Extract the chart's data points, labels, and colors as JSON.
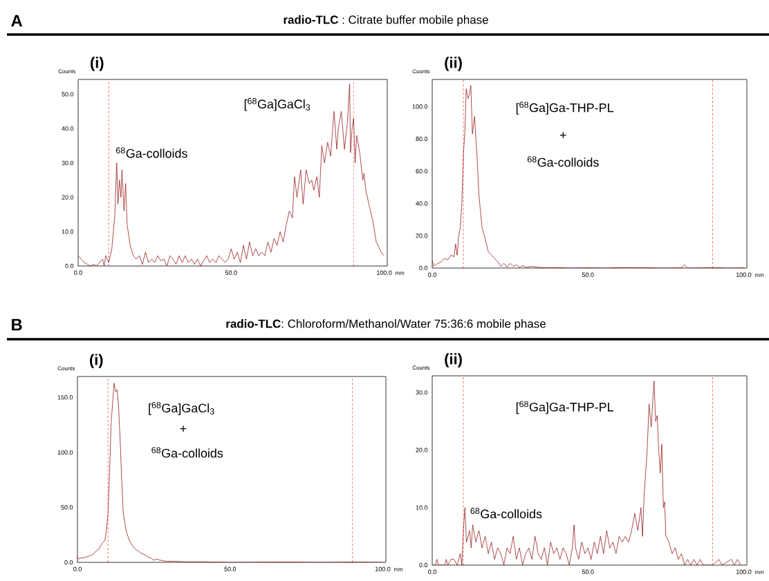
{
  "chart_data": [
    {
      "type": "line",
      "title": "(i)",
      "ylabel": "Counts",
      "xlabel": "mm",
      "marker": "none",
      "line_style": "solid",
      "annotations": [
        "A",
        "**radio-TLC** : Citrate buffer mobile phase",
        "$^{68}$Ga-colloids",
        "[$^{68}$Ga]GaCl$_{3}$"
      ],
      "xlim": [
        0,
        101
      ],
      "ylim": [
        0,
        54.3
      ],
      "xticks": [
        {
          "value": 0,
          "label": "0.0"
        },
        {
          "value": 10,
          "label": null
        },
        {
          "value": 20,
          "label": null
        },
        {
          "value": 30,
          "label": null
        },
        {
          "value": 40,
          "label": null
        },
        {
          "value": 50,
          "label": "50.0"
        },
        {
          "value": 60,
          "label": null
        },
        {
          "value": 70,
          "label": null
        },
        {
          "value": 80,
          "label": null
        },
        {
          "value": 90,
          "label": null
        },
        {
          "value": 100,
          "label": "100.0"
        }
      ],
      "yticks": [
        {
          "value": 0,
          "label": "0.0"
        },
        {
          "value": 10,
          "label": "10.0"
        },
        {
          "value": 20,
          "label": "20.0"
        },
        {
          "value": 30,
          "label": "30.0"
        },
        {
          "value": 40,
          "label": "40.0"
        },
        {
          "value": 50,
          "label": "50.0"
        }
      ],
      "ref_lines": [
        {
          "axis": "x",
          "value": 10,
          "color": "#ff0000",
          "line_style": "dashed"
        },
        {
          "axis": "x",
          "value": 90,
          "color": "#ff0000",
          "line_style": "dashed"
        }
      ],
      "series": [
        {
          "color": "#8b0000",
          "x": [
            0,
            1,
            2,
            3,
            4,
            5,
            6,
            7,
            8,
            8.5,
            9,
            10,
            11,
            12,
            12.6,
            13,
            13.5,
            14,
            14.3,
            15,
            15.5,
            16,
            17,
            18,
            19,
            20,
            21,
            22,
            23,
            24,
            25,
            26,
            27,
            28,
            29,
            30,
            31,
            32,
            33,
            34,
            35,
            36,
            37,
            38,
            39,
            40,
            41,
            42,
            43,
            44,
            45,
            46,
            47,
            48,
            49,
            50,
            51,
            52,
            53,
            54,
            55,
            56,
            57,
            58,
            59,
            60,
            61,
            62,
            63,
            64,
            65,
            66,
            67,
            68,
            69,
            70,
            70.7,
            71.5,
            72.7,
            73.5,
            74.5,
            75.5,
            76.3,
            77,
            78,
            78.8,
            79.6,
            80.5,
            81.5,
            82.5,
            83.6,
            84.5,
            85,
            86,
            87,
            88,
            88.7,
            89,
            89.5,
            90,
            90.5,
            91,
            92,
            93,
            93.4,
            94,
            95,
            95.8,
            96.5,
            97.4,
            98,
            99,
            100
          ],
          "values": [
            3,
            2,
            1,
            0.5,
            0,
            0.5,
            0,
            1,
            2,
            0,
            3,
            1,
            5,
            15,
            30,
            18,
            25,
            20,
            28,
            16,
            24,
            12,
            6,
            3,
            2,
            3,
            0.5,
            4,
            1,
            2,
            1,
            3,
            1.5,
            2,
            0,
            3,
            2,
            0.5,
            3,
            1,
            3,
            1,
            2,
            0.5,
            2,
            0,
            1.5,
            3,
            1,
            2,
            1,
            3,
            2,
            1,
            2,
            5,
            2,
            4,
            1,
            6,
            2,
            7,
            3,
            5,
            3,
            4,
            3,
            7,
            4,
            8,
            6,
            10,
            7,
            12,
            16,
            14,
            26,
            20,
            28,
            18,
            28,
            24,
            25,
            22,
            26,
            20,
            35,
            30,
            36,
            32,
            45,
            34,
            40,
            45,
            34,
            42,
            53,
            33,
            40,
            43,
            30,
            38,
            33,
            25,
            27,
            22,
            18,
            15,
            12,
            7,
            6,
            4,
            3
          ]
        }
      ]
    },
    {
      "type": "line",
      "title": "(ii)",
      "ylabel": "Counts",
      "xlabel": "mm",
      "marker": "none",
      "line_style": "solid",
      "annotations": [
        "[$^{68}$Ga]Ga-THP-PL",
        "+",
        "$^{68}$Ga-colloids"
      ],
      "xlim": [
        0,
        101
      ],
      "ylim": [
        0,
        116.8
      ],
      "xticks": [
        {
          "value": 0,
          "label": "0.0"
        },
        {
          "value": 10,
          "label": null
        },
        {
          "value": 20,
          "label": null
        },
        {
          "value": 30,
          "label": null
        },
        {
          "value": 40,
          "label": null
        },
        {
          "value": 50,
          "label": "50.0"
        },
        {
          "value": 60,
          "label": null
        },
        {
          "value": 70,
          "label": null
        },
        {
          "value": 80,
          "label": null
        },
        {
          "value": 90,
          "label": null
        },
        {
          "value": 100,
          "label": "100.0"
        }
      ],
      "yticks": [
        {
          "value": 0,
          "label": "0.0"
        },
        {
          "value": 20,
          "label": "20.0"
        },
        {
          "value": 40,
          "label": "40.0"
        },
        {
          "value": 60,
          "label": "60.0"
        },
        {
          "value": 80,
          "label": "80.0"
        },
        {
          "value": 100,
          "label": "100.0"
        }
      ],
      "ref_lines": [
        {
          "axis": "x",
          "value": 10,
          "color": "#ff0000",
          "line_style": "dashed"
        },
        {
          "axis": "x",
          "value": 90,
          "color": "#ff0000",
          "line_style": "dashed"
        }
      ],
      "series": [
        {
          "color": "#8b0000",
          "x": [
            0,
            0.5,
            1,
            2,
            3,
            4,
            5,
            6,
            7,
            7.5,
            8,
            8.5,
            9,
            9.5,
            10,
            10.5,
            10.9,
            11.5,
            12,
            12.4,
            12.9,
            13.6,
            14.1,
            14.5,
            15,
            16,
            17,
            18,
            19,
            20,
            21,
            22,
            23,
            24,
            25,
            26,
            27,
            28,
            29,
            30,
            32,
            34,
            36,
            40,
            45,
            50,
            55,
            60,
            70,
            75,
            80,
            81,
            82,
            90,
            95,
            100
          ],
          "values": [
            5,
            1,
            2,
            3,
            4,
            6,
            5,
            8,
            7,
            15,
            8,
            20,
            25,
            40,
            70,
            85,
            111,
            105,
            108,
            113,
            83,
            94,
            78,
            65,
            45,
            25,
            18,
            10,
            8,
            6,
            4,
            1,
            3,
            0.5,
            3,
            1,
            2,
            0.5,
            1.5,
            0.5,
            1,
            0.5,
            0.2,
            0.3,
            0,
            0.2,
            0,
            0.3,
            0.2,
            0,
            0.2,
            2,
            0,
            0.3,
            0,
            0.2
          ]
        }
      ]
    },
    {
      "type": "line",
      "title": "(i)",
      "ylabel": "Counts",
      "xlabel": "mm",
      "marker": "none",
      "line_style": "solid",
      "annotations": [
        "B",
        "**radio-TLC**: Chloroform/Methanol/Water 75:36:6 mobile phase",
        "[$^{68}$Ga]GaCl$_{3}$",
        "+",
        "$^{68}$Ga-colloids"
      ],
      "xlim": [
        0,
        101
      ],
      "ylim": [
        0,
        169
      ],
      "xticks": [
        {
          "value": 0,
          "label": "0.0"
        },
        {
          "value": 10,
          "label": null
        },
        {
          "value": 20,
          "label": null
        },
        {
          "value": 30,
          "label": null
        },
        {
          "value": 40,
          "label": null
        },
        {
          "value": 50,
          "label": "50.0"
        },
        {
          "value": 60,
          "label": null
        },
        {
          "value": 70,
          "label": null
        },
        {
          "value": 80,
          "label": null
        },
        {
          "value": 90,
          "label": null
        },
        {
          "value": 100,
          "label": "100.0"
        }
      ],
      "yticks": [
        {
          "value": 0,
          "label": "0.0"
        },
        {
          "value": 50,
          "label": "50.0"
        },
        {
          "value": 100,
          "label": "100.0"
        },
        {
          "value": 150,
          "label": "150.0"
        }
      ],
      "ref_lines": [
        {
          "axis": "x",
          "value": 10,
          "color": "#ff0000",
          "line_style": "dashed"
        },
        {
          "axis": "x",
          "value": 90,
          "color": "#ff0000",
          "line_style": "dashed"
        }
      ],
      "series": [
        {
          "color": "#8b0000",
          "x": [
            0,
            0.5,
            1,
            2,
            3,
            4,
            5,
            6,
            7,
            8,
            9,
            9.5,
            10,
            10.5,
            11,
            11.5,
            12,
            12.5,
            13,
            13.5,
            14,
            14.5,
            15,
            16,
            17,
            18,
            19,
            20,
            21,
            22,
            23,
            24,
            25,
            26,
            27,
            28,
            29,
            30,
            32,
            35,
            40,
            45,
            50,
            60,
            70,
            80,
            90,
            100
          ],
          "values": [
            5,
            3,
            4,
            4,
            5,
            6,
            7,
            10,
            12,
            17,
            20,
            30,
            45,
            80,
            125,
            145,
            163,
            155,
            157,
            140,
            110,
            75,
            45,
            28,
            20,
            15,
            12,
            10,
            8,
            7,
            5,
            4,
            2,
            3,
            2,
            1.5,
            1,
            1,
            1,
            0.5,
            0.5,
            0.3,
            0,
            0.2,
            0.3,
            0,
            0.3,
            0
          ]
        }
      ]
    },
    {
      "type": "line",
      "title": "(ii)",
      "ylabel": "Counts",
      "xlabel": "mm",
      "marker": "none",
      "line_style": "solid",
      "annotations": [
        "[$^{68}$Ga]Ga-THP-PL",
        "$^{68}$Ga-colloids"
      ],
      "xlim": [
        0,
        101
      ],
      "ylim": [
        0,
        32.9
      ],
      "xticks": [
        {
          "value": 0,
          "label": "0.0"
        },
        {
          "value": 10,
          "label": null
        },
        {
          "value": 20,
          "label": null
        },
        {
          "value": 30,
          "label": null
        },
        {
          "value": 40,
          "label": null
        },
        {
          "value": 50,
          "label": "50.0"
        },
        {
          "value": 60,
          "label": null
        },
        {
          "value": 70,
          "label": null
        },
        {
          "value": 80,
          "label": null
        },
        {
          "value": 90,
          "label": null
        },
        {
          "value": 100,
          "label": "100.0"
        }
      ],
      "yticks": [
        {
          "value": 0,
          "label": "0.0"
        },
        {
          "value": 10,
          "label": "10.0"
        },
        {
          "value": 20,
          "label": "20.0"
        },
        {
          "value": 30,
          "label": "30.0"
        }
      ],
      "ref_lines": [
        {
          "axis": "x",
          "value": 10,
          "color": "#ff0000",
          "line_style": "dashed"
        },
        {
          "axis": "x",
          "value": 90,
          "color": "#ff0000",
          "line_style": "dashed"
        }
      ],
      "series": [
        {
          "color": "#8b0000",
          "x": [
            0,
            1,
            1.5,
            2,
            4,
            4.5,
            5,
            6,
            7,
            8,
            9,
            9.5,
            10,
            10.5,
            11,
            12,
            12.5,
            13,
            14,
            15,
            16,
            17,
            18,
            19,
            20,
            21,
            22,
            23,
            24,
            25,
            26,
            27,
            28,
            29,
            30,
            31,
            32,
            33,
            34,
            35,
            36,
            37,
            38,
            39,
            40,
            41,
            42,
            43,
            44,
            45,
            45.5,
            46,
            47,
            48,
            49,
            50,
            51,
            52,
            53,
            54,
            55,
            56,
            57,
            58,
            59,
            60,
            61,
            62,
            63,
            64,
            65,
            66,
            67,
            67.5,
            68,
            69,
            69.6,
            70.3,
            71.2,
            71.7,
            72.2,
            72.7,
            73.2,
            73.7,
            74.2,
            74.6,
            75,
            76,
            77,
            78,
            79,
            80,
            81,
            82,
            83,
            84,
            85,
            86,
            87,
            90,
            92,
            93,
            96,
            97,
            98,
            99
          ],
          "values": [
            0,
            0,
            1,
            0,
            0,
            1,
            0,
            1,
            1,
            0,
            2,
            0,
            6,
            10,
            4,
            6,
            3,
            7,
            4,
            6,
            3,
            5,
            2,
            4,
            1,
            3,
            2,
            0,
            3,
            2,
            5,
            1,
            3,
            0,
            2,
            3,
            1,
            5,
            2,
            1,
            3,
            0,
            4,
            2,
            3,
            1,
            3,
            2,
            0,
            3,
            7,
            3,
            1,
            4,
            2,
            3,
            1,
            4,
            2,
            5,
            2,
            6,
            3,
            4,
            2,
            5,
            4,
            5,
            4,
            6,
            9,
            6,
            10,
            5,
            12,
            20,
            28,
            24,
            32,
            25,
            26,
            20,
            16,
            21,
            10,
            11,
            5,
            4,
            2,
            3,
            1,
            2,
            0,
            1,
            0,
            1,
            0,
            1,
            0,
            0,
            1,
            0,
            1,
            0,
            1,
            0
          ]
        }
      ]
    }
  ]
}
